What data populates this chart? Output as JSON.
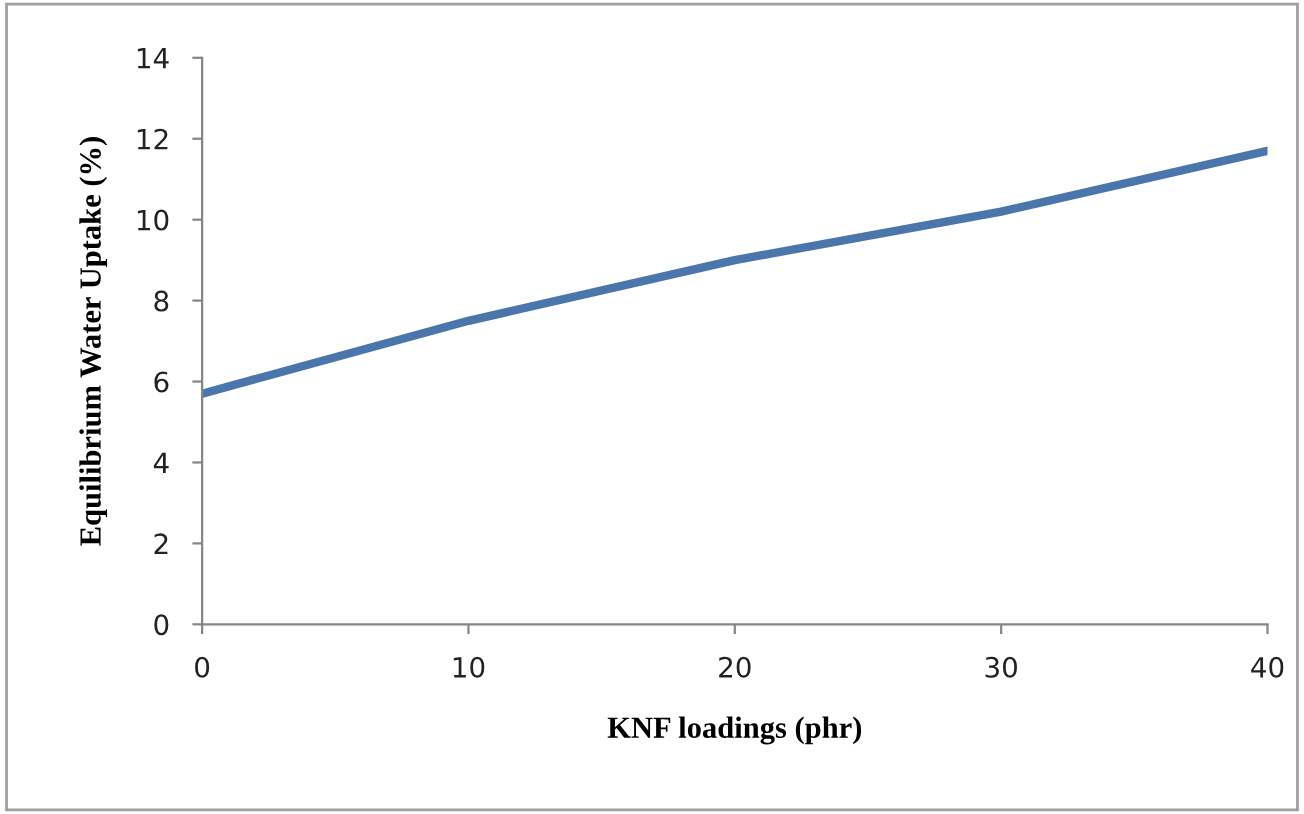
{
  "chart_data": {
    "type": "line",
    "xlabel": "KNF loadings (phr)",
    "ylabel": "Equilibrium Water Uptake (%)",
    "x": [
      0,
      10,
      20,
      30,
      40
    ],
    "series": [
      {
        "color": "#4a76ac",
        "values": [
          5.7,
          7.5,
          9.0,
          10.2,
          11.7
        ]
      }
    ],
    "xlim": [
      0,
      40
    ],
    "xticks": [
      0,
      10,
      20,
      30,
      40
    ],
    "ylim": [
      0,
      14
    ],
    "yticks": [
      0,
      2,
      4,
      6,
      8,
      10,
      12,
      14
    ],
    "grid": false,
    "legend": false,
    "marker": "none",
    "line_style": "solid"
  }
}
